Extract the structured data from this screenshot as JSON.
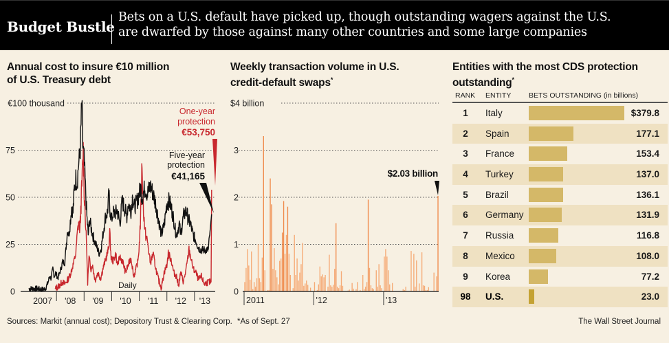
{
  "header": {
    "title": "Budget Bustle",
    "dek_line1": "Bets on a U.S. default have picked up, though outstanding wagers against the U.S.",
    "dek_line2": "are dwarfed by those against many other countries and some large companies"
  },
  "colors": {
    "background": "#f7f0e2",
    "one_year": "#c8282e",
    "five_year": "#111111",
    "weekly_bars": "#f2a06a",
    "table_bar": "#d4b868",
    "table_bar_us": "#c4a233",
    "table_alt_row": "#efe1c2"
  },
  "chart_data": [
    {
      "type": "line",
      "title_line1": "Annual cost to insure €10 million",
      "title_line2": "of U.S. Treasury debt",
      "ylabel": "",
      "ylim": [
        0,
        100
      ],
      "yticks": [
        {
          "v": 100,
          "label": "€100 thousand"
        },
        {
          "v": 75,
          "label": "75"
        },
        {
          "v": 50,
          "label": "50"
        },
        {
          "v": 25,
          "label": "25"
        },
        {
          "v": 0,
          "label": "0"
        }
      ],
      "xlim": [
        2007.0,
        2013.75
      ],
      "xticks": [
        {
          "v": 2007,
          "label": "2007"
        },
        {
          "v": 2008,
          "label": "'08"
        },
        {
          "v": 2009,
          "label": "'09"
        },
        {
          "v": 2010,
          "label": "'10"
        },
        {
          "v": 2011,
          "label": "'11"
        },
        {
          "v": 2012,
          "label": "'12"
        },
        {
          "v": 2013,
          "label": "'13"
        }
      ],
      "frequency_note": "Daily",
      "grid": "dotted horizontal",
      "series": [
        {
          "name": "Five-year protection",
          "label_line1": "Five-year",
          "label_line2": "protection",
          "last_value_label": "€41,165",
          "color": "#111111",
          "points": [
            [
              2007.0,
              1.5
            ],
            [
              2007.3,
              1.5
            ],
            [
              2007.5,
              1.0
            ],
            [
              2007.6,
              1.5
            ],
            [
              2007.7,
              5
            ],
            [
              2007.75,
              8
            ],
            [
              2007.8,
              7
            ],
            [
              2007.87,
              12
            ],
            [
              2007.92,
              8
            ],
            [
              2007.97,
              10
            ],
            [
              2008.05,
              7
            ],
            [
              2008.12,
              10
            ],
            [
              2008.18,
              13
            ],
            [
              2008.22,
              16
            ],
            [
              2008.3,
              15
            ],
            [
              2008.35,
              24
            ],
            [
              2008.4,
              33
            ],
            [
              2008.45,
              30
            ],
            [
              2008.5,
              37
            ],
            [
              2008.55,
              45
            ],
            [
              2008.6,
              42
            ],
            [
              2008.65,
              55
            ],
            [
              2008.7,
              60
            ],
            [
              2008.75,
              58
            ],
            [
              2008.8,
              68
            ],
            [
              2008.85,
              72
            ],
            [
              2008.88,
              85
            ],
            [
              2008.92,
              100
            ],
            [
              2008.95,
              78
            ],
            [
              2009.0,
              70
            ],
            [
              2009.05,
              55
            ],
            [
              2009.1,
              40
            ],
            [
              2009.15,
              30
            ],
            [
              2009.2,
              38
            ],
            [
              2009.28,
              32
            ],
            [
              2009.35,
              28
            ],
            [
              2009.45,
              24
            ],
            [
              2009.55,
              20
            ],
            [
              2009.62,
              23
            ],
            [
              2009.7,
              32
            ],
            [
              2009.78,
              40
            ],
            [
              2009.85,
              42
            ],
            [
              2009.9,
              52
            ],
            [
              2009.93,
              44
            ],
            [
              2010.0,
              38
            ],
            [
              2010.05,
              42
            ],
            [
              2010.1,
              41
            ],
            [
              2010.2,
              43
            ],
            [
              2010.3,
              36
            ],
            [
              2010.38,
              48
            ],
            [
              2010.45,
              45
            ],
            [
              2010.55,
              40
            ],
            [
              2010.6,
              47
            ],
            [
              2010.7,
              43
            ],
            [
              2010.75,
              50
            ],
            [
              2010.82,
              45
            ],
            [
              2010.9,
              47
            ],
            [
              2011.0,
              52
            ],
            [
              2011.05,
              55
            ],
            [
              2011.1,
              50
            ],
            [
              2011.2,
              55
            ],
            [
              2011.3,
              52
            ],
            [
              2011.4,
              56
            ],
            [
              2011.5,
              52
            ],
            [
              2011.6,
              46
            ],
            [
              2011.7,
              38
            ],
            [
              2011.8,
              30
            ],
            [
              2011.9,
              35
            ],
            [
              2012.0,
              47
            ],
            [
              2012.08,
              48
            ],
            [
              2012.15,
              45
            ],
            [
              2012.25,
              38
            ],
            [
              2012.3,
              33
            ],
            [
              2012.35,
              30
            ],
            [
              2012.45,
              36
            ],
            [
              2012.5,
              30
            ],
            [
              2012.6,
              40
            ],
            [
              2012.7,
              43
            ],
            [
              2012.78,
              38
            ],
            [
              2012.85,
              36
            ],
            [
              2012.95,
              30
            ],
            [
              2013.05,
              27
            ],
            [
              2013.15,
              23
            ],
            [
              2013.25,
              22
            ],
            [
              2013.5,
              22
            ],
            [
              2013.55,
              30
            ],
            [
              2013.62,
              41
            ]
          ]
        },
        {
          "name": "One-year protection",
          "label_line1": "One-year",
          "label_line2": "protection",
          "last_value_label": "€53,750",
          "color": "#c8282e",
          "points": [
            [
              2007.95,
              1
            ],
            [
              2008.0,
              2
            ],
            [
              2008.1,
              3
            ],
            [
              2008.2,
              5
            ],
            [
              2008.3,
              4
            ],
            [
              2008.4,
              6
            ],
            [
              2008.5,
              9
            ],
            [
              2008.6,
              14
            ],
            [
              2008.7,
              20
            ],
            [
              2008.75,
              30
            ],
            [
              2008.8,
              37
            ],
            [
              2008.85,
              33
            ],
            [
              2008.9,
              50
            ],
            [
              2008.93,
              60
            ],
            [
              2008.97,
              75
            ],
            [
              2009.0,
              55
            ],
            [
              2009.05,
              38
            ],
            [
              2009.1,
              20
            ],
            [
              2009.13,
              5
            ],
            [
              2009.18,
              18
            ],
            [
              2009.25,
              12
            ],
            [
              2009.3,
              14
            ],
            [
              2009.4,
              6
            ],
            [
              2009.5,
              10
            ],
            [
              2009.6,
              7
            ],
            [
              2009.7,
              13
            ],
            [
              2009.8,
              18
            ],
            [
              2009.88,
              22
            ],
            [
              2009.93,
              31
            ],
            [
              2009.98,
              18
            ],
            [
              2010.05,
              16
            ],
            [
              2010.15,
              20
            ],
            [
              2010.2,
              14
            ],
            [
              2010.3,
              18
            ],
            [
              2010.4,
              16
            ],
            [
              2010.5,
              10
            ],
            [
              2010.6,
              14
            ],
            [
              2010.7,
              18
            ],
            [
              2010.8,
              8
            ],
            [
              2010.88,
              12
            ],
            [
              2010.95,
              16
            ],
            [
              2011.0,
              25
            ],
            [
              2011.05,
              40
            ],
            [
              2011.08,
              55
            ],
            [
              2011.1,
              70
            ],
            [
              2011.13,
              50
            ],
            [
              2011.2,
              32
            ],
            [
              2011.3,
              26
            ],
            [
              2011.4,
              15
            ],
            [
              2011.5,
              20
            ],
            [
              2011.6,
              12
            ],
            [
              2011.7,
              6
            ],
            [
              2011.8,
              2
            ],
            [
              2011.9,
              10
            ],
            [
              2012.0,
              14
            ],
            [
              2012.05,
              20
            ],
            [
              2012.15,
              17
            ],
            [
              2012.25,
              10
            ],
            [
              2012.35,
              8
            ],
            [
              2012.42,
              3
            ],
            [
              2012.5,
              10
            ],
            [
              2012.6,
              5
            ],
            [
              2012.7,
              12
            ],
            [
              2012.8,
              22
            ],
            [
              2012.88,
              17
            ],
            [
              2012.95,
              12
            ],
            [
              2013.05,
              10
            ],
            [
              2013.15,
              6
            ],
            [
              2013.25,
              8
            ],
            [
              2013.35,
              4
            ],
            [
              2013.5,
              5
            ],
            [
              2013.6,
              5
            ],
            [
              2013.62,
              54
            ]
          ]
        }
      ]
    },
    {
      "type": "bar",
      "title_line1": "Weekly transaction volume in U.S.",
      "title_line2": "credit-default swaps",
      "title_footnote_mark": "*",
      "ylabel": "",
      "ylim": [
        0,
        4
      ],
      "yticks": [
        {
          "v": 4,
          "label": "$4 billion"
        },
        {
          "v": 3,
          "label": "3"
        },
        {
          "v": 2,
          "label": "2"
        },
        {
          "v": 1,
          "label": "1"
        },
        {
          "v": 0,
          "label": "0"
        }
      ],
      "xticks": [
        {
          "week": 0,
          "label": "2011"
        },
        {
          "week": 52,
          "label": "'12"
        },
        {
          "week": 104,
          "label": "'13"
        }
      ],
      "annotation": "$2.03 billion",
      "grid": "dotted horizontal",
      "values": [
        0.2,
        0.5,
        0.9,
        0.55,
        0.25,
        0.85,
        0.05,
        0.2,
        0.1,
        0.28,
        1.0,
        0.28,
        0.2,
        0.72,
        3.3,
        0.45,
        0.0,
        0.03,
        0.03,
        2.4,
        1.85,
        0.48,
        0.92,
        0.45,
        0.3,
        0.15,
        0.65,
        0.7,
        1.25,
        1.92,
        0.8,
        1.2,
        1.8,
        0.8,
        0.35,
        0.0,
        0.07,
        1.2,
        0.35,
        0.7,
        0.23,
        0.4,
        0.58,
        1.03,
        0.12,
        0.17,
        0.23,
        0.14,
        0.0,
        0.08,
        0.0,
        0.0,
        0.2,
        0.0,
        0.03,
        0.15,
        0.53,
        0.32,
        0.36,
        0.3,
        0.35,
        0.0,
        0.1,
        0.78,
        0.13,
        0.1,
        0.14,
        0.48,
        1.45,
        0.1,
        0.07,
        0.13,
        0.43,
        0.12,
        0.0,
        0.0,
        0.0,
        0.02,
        0.04,
        0.0,
        0.18,
        0.06,
        0.0,
        0.05,
        0.2,
        0.0,
        0.03,
        0.0,
        0.35,
        0.05,
        0.1,
        0.2,
        1.95,
        0.5,
        0.13,
        0.07,
        0.05,
        0.0,
        0.45,
        0.1,
        0.58,
        0.13,
        0.07,
        0.0,
        0.74,
        0.9,
        0.74,
        0.45,
        0.15,
        0.0,
        0.18,
        0.0,
        0.0,
        0.0,
        0.0,
        0.0,
        0.0,
        0.0,
        0.05,
        0.03,
        0.1,
        0.0,
        0.0,
        0.0,
        0.86,
        0.0,
        0.8,
        0.1,
        0.66,
        0.0,
        0.17,
        0.0,
        0.83,
        0.13,
        0.12,
        0.03,
        0.03,
        0.09,
        0.0,
        0.0,
        0.0,
        0.4,
        0.0,
        0.32,
        2.03
      ]
    },
    {
      "type": "table",
      "title_line1": "Entities with the most CDS protection",
      "title_line2": "outstanding",
      "title_footnote_mark": "*",
      "columns": [
        "RANK",
        "ENTITY",
        "BETS OUTSTANDING (in billions)"
      ],
      "rows": [
        {
          "rank": "1",
          "entity": "Italy",
          "value": 379.8,
          "value_label": "$379.8"
        },
        {
          "rank": "2",
          "entity": "Spain",
          "value": 177.1,
          "value_label": "177.1"
        },
        {
          "rank": "3",
          "entity": "France",
          "value": 153.4,
          "value_label": "153.4"
        },
        {
          "rank": "4",
          "entity": "Turkey",
          "value": 137.0,
          "value_label": "137.0"
        },
        {
          "rank": "5",
          "entity": "Brazil",
          "value": 136.1,
          "value_label": "136.1"
        },
        {
          "rank": "6",
          "entity": "Germany",
          "value": 131.9,
          "value_label": "131.9"
        },
        {
          "rank": "7",
          "entity": "Russia",
          "value": 116.8,
          "value_label": "116.8"
        },
        {
          "rank": "8",
          "entity": "Mexico",
          "value": 108.0,
          "value_label": "108.0"
        },
        {
          "rank": "9",
          "entity": "Korea",
          "value": 77.2,
          "value_label": "77.2"
        },
        {
          "rank": "98",
          "entity": "U.S.",
          "value": 23.0,
          "value_label": "23.0",
          "highlight": true
        }
      ]
    }
  ],
  "footer": {
    "sources": "Sources: Markit (annual cost); Depository Trust & Clearing Corp.",
    "footnote": "*As of Sept. 27",
    "credit": "The Wall Street Journal"
  }
}
